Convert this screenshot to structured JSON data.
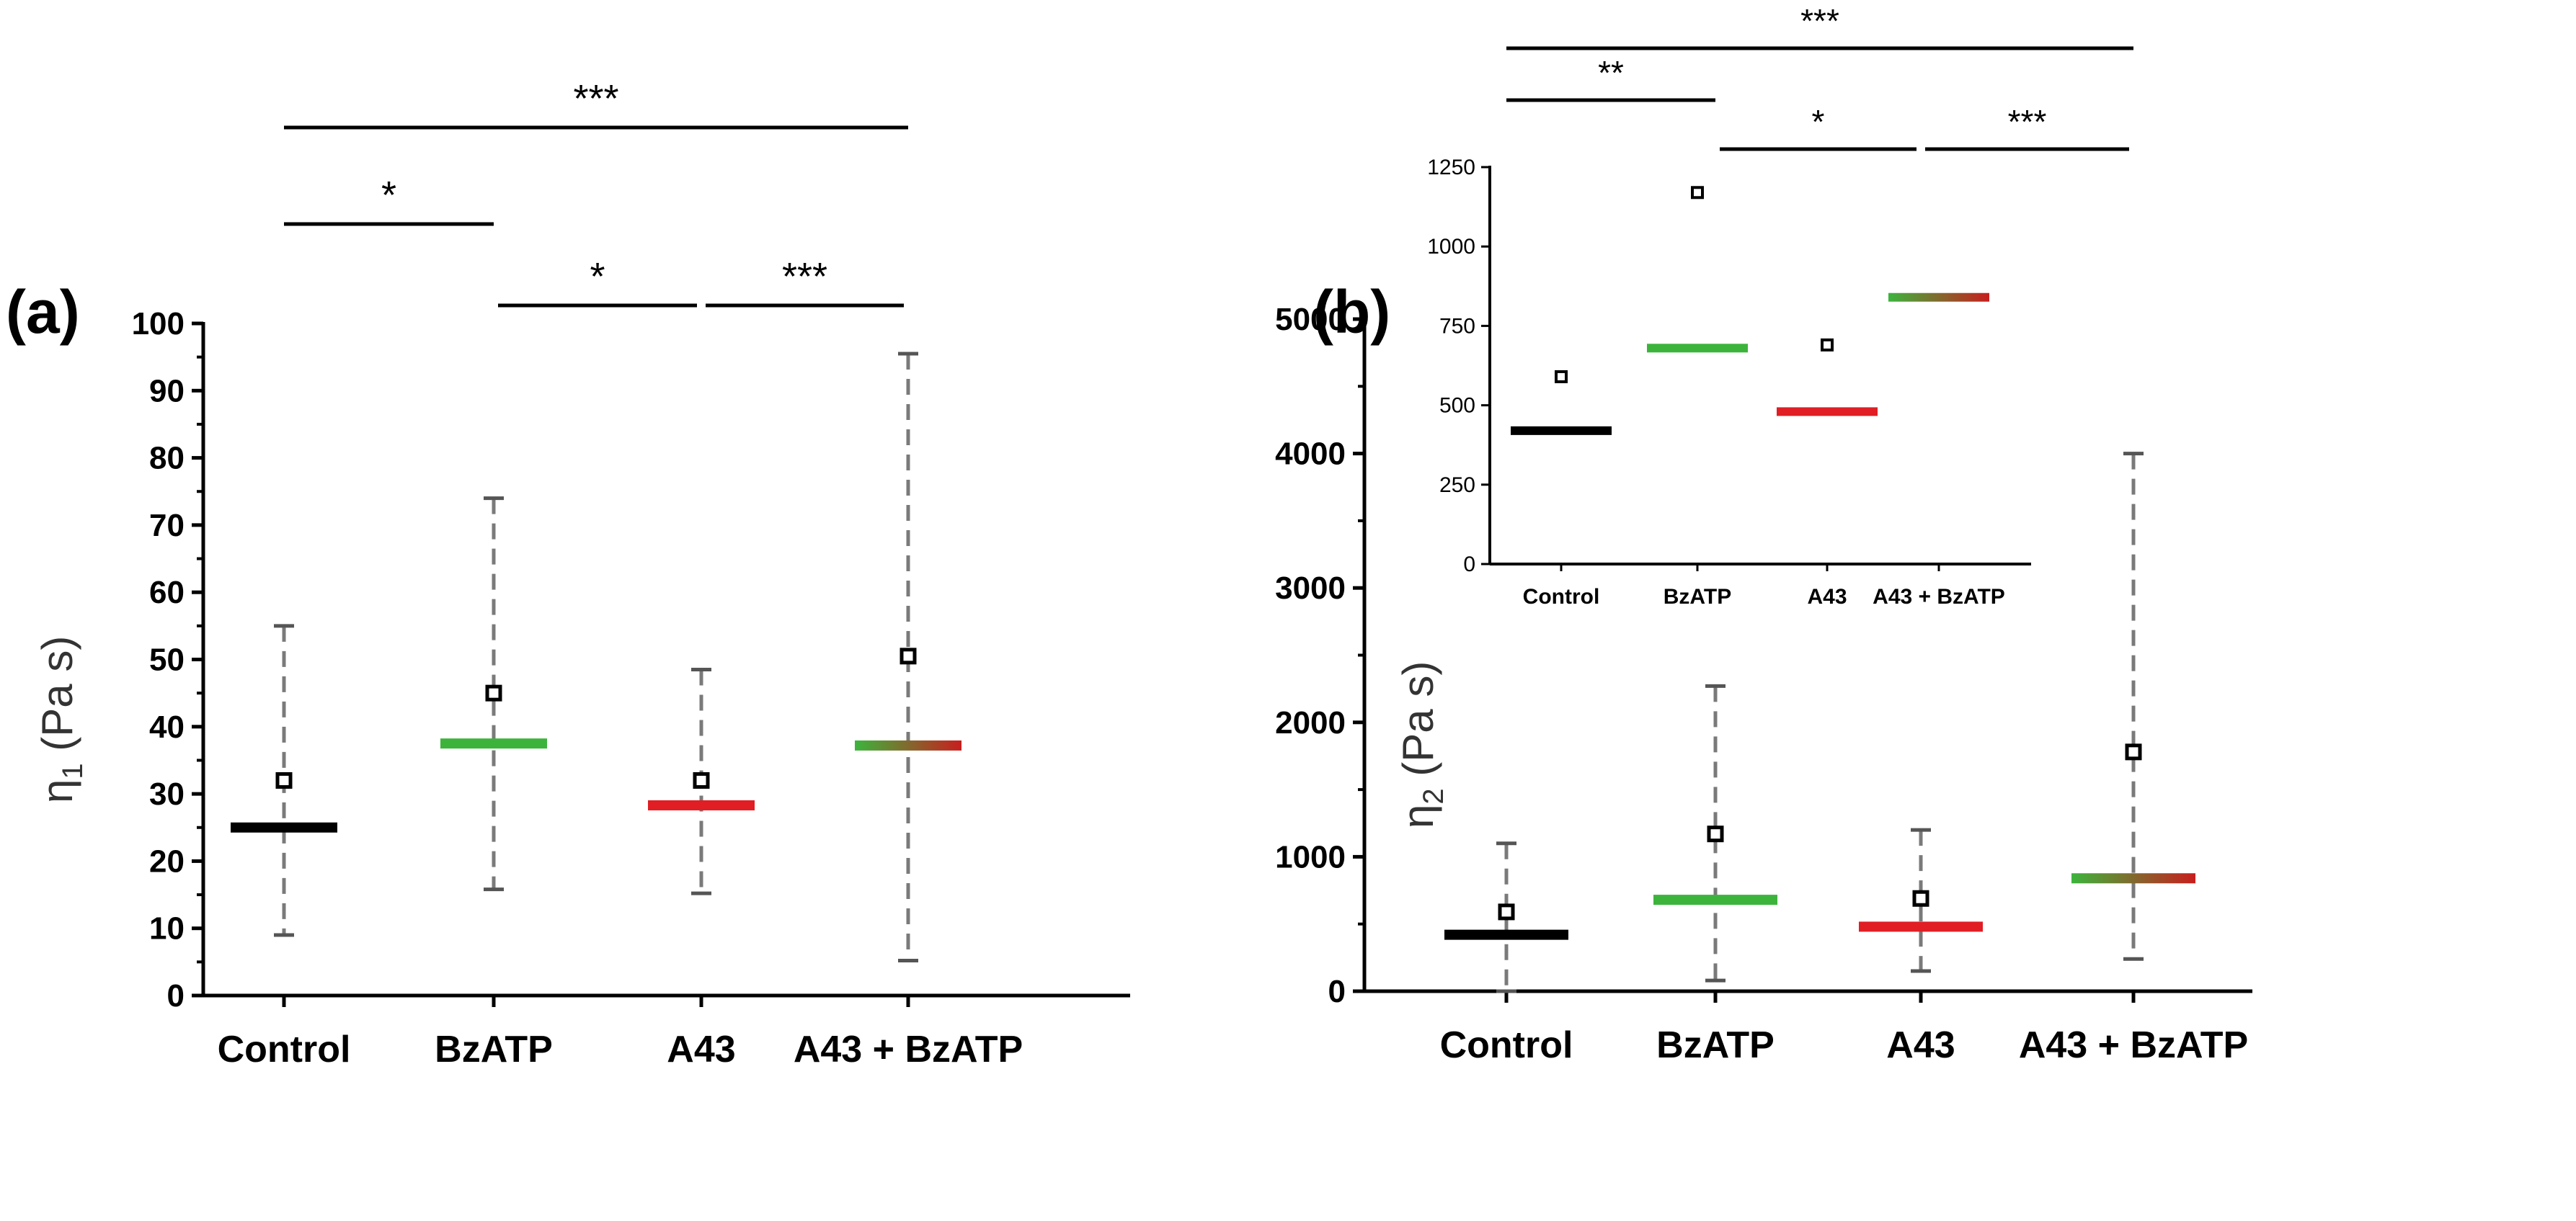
{
  "colors": {
    "control": "#000000",
    "bzatp": "#3cb43c",
    "a43": "#e01e24",
    "combo_start": "#3cb43c",
    "combo_end": "#c81e1e",
    "whisker": "#7a7a7a",
    "mean_marker": "#000000"
  },
  "chart_data": [
    {
      "type": "scatter",
      "panel_label": "(a)",
      "ylabel": "η",
      "ylabel_sub": "1",
      "ylabel_units": " (Pa s)",
      "categories": [
        "Control",
        "BzATP",
        "A43",
        "A43 + BzATP"
      ],
      "ylim": [
        0,
        100
      ],
      "yticks": [
        0,
        10,
        20,
        30,
        40,
        50,
        60,
        70,
        80,
        90,
        100
      ],
      "series": [
        {
          "name": "median",
          "values": [
            25,
            37.5,
            28.3,
            37.2
          ]
        },
        {
          "name": "mean",
          "values": [
            32,
            45,
            32,
            50.5
          ]
        },
        {
          "name": "whisker_low",
          "values": [
            9,
            15.8,
            15.2,
            5.2
          ]
        },
        {
          "name": "whisker_high",
          "values": [
            55,
            74,
            48.5,
            95.5
          ]
        }
      ],
      "significance": [
        {
          "from": 0,
          "to": 3,
          "label": "***",
          "level": 1
        },
        {
          "from": 0,
          "to": 1,
          "label": "*",
          "level": 2
        },
        {
          "from": 1,
          "to": 2,
          "label": "*",
          "level": 3
        },
        {
          "from": 2,
          "to": 3,
          "label": "***",
          "level": 3
        }
      ]
    },
    {
      "type": "scatter",
      "panel_label": "(b)",
      "ylabel": "η",
      "ylabel_sub": "2",
      "ylabel_units": " (Pa s)",
      "categories": [
        "Control",
        "BzATP",
        "A43",
        "A43 + BzATP"
      ],
      "ylim": [
        0,
        5000
      ],
      "yticks": [
        0,
        1000,
        2000,
        3000,
        4000,
        5000
      ],
      "series": [
        {
          "name": "median",
          "values": [
            420,
            680,
            480,
            840
          ]
        },
        {
          "name": "mean",
          "values": [
            590,
            1170,
            690,
            1780
          ]
        },
        {
          "name": "whisker_low",
          "values": [
            0,
            80,
            150,
            240
          ]
        },
        {
          "name": "whisker_high",
          "values": [
            1100,
            2270,
            1200,
            4000
          ]
        }
      ],
      "inset": {
        "categories": [
          "Control",
          "BzATP",
          "A43",
          "A43 + BzATP"
        ],
        "ylim": [
          0,
          1250
        ],
        "yticks": [
          0,
          250,
          500,
          750,
          1000,
          1250
        ],
        "series": [
          {
            "name": "median",
            "values": [
              420,
              680,
              480,
              840
            ]
          },
          {
            "name": "mean",
            "values": [
              590,
              1170,
              690
            ]
          }
        ]
      },
      "significance": [
        {
          "from": 0,
          "to": 3,
          "label": "***",
          "level": 1
        },
        {
          "from": 0,
          "to": 1,
          "label": "**",
          "level": 2
        },
        {
          "from": 1,
          "to": 2,
          "label": "*",
          "level": 3
        },
        {
          "from": 2,
          "to": 3,
          "label": "***",
          "level": 3
        }
      ]
    }
  ]
}
